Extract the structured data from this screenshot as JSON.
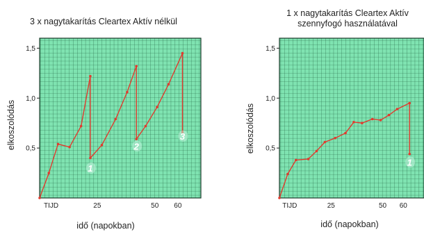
{
  "chart_data": [
    {
      "type": "line",
      "title": "3 x nagytakarítás Cleartex Aktív nélkül",
      "xlabel": "idő (napokban)",
      "ylabel": "elkoszolódás",
      "xlim": [
        0,
        70
      ],
      "ylim": [
        0,
        1.6
      ],
      "x_ticks": [
        {
          "value": 5,
          "label": "TIJD"
        },
        {
          "value": 25,
          "label": "25"
        },
        {
          "value": 50,
          "label": "50"
        },
        {
          "value": 60,
          "label": "60"
        }
      ],
      "y_ticks": [
        {
          "value": 0.5,
          "label": "0,5"
        },
        {
          "value": 1.0,
          "label": "1,0"
        },
        {
          "value": 1.5,
          "label": "1,5"
        }
      ],
      "grid": true,
      "series": [
        {
          "x": [
            0,
            4,
            8,
            13,
            18,
            22,
            22,
            27,
            33,
            38,
            42,
            42,
            46,
            51,
            56,
            62,
            62
          ],
          "y": [
            0.0,
            0.25,
            0.54,
            0.51,
            0.72,
            1.22,
            0.4,
            0.53,
            0.79,
            1.06,
            1.32,
            0.59,
            0.72,
            0.91,
            1.14,
            1.45,
            0.66
          ]
        }
      ],
      "annotations": [
        {
          "label": "1",
          "x": 22,
          "y": 0.3
        },
        {
          "label": "2",
          "x": 42,
          "y": 0.52
        },
        {
          "label": "3",
          "x": 62,
          "y": 0.62
        }
      ]
    },
    {
      "type": "line",
      "title": "1 x nagytakarítás Cleartex Aktív szennyfogó használatával",
      "title_lines": [
        "1 x nagytakarítás Cleartex Aktív",
        "szennyfogó használatával"
      ],
      "xlabel": "idő (napokban)",
      "ylabel": "elkoszolódás",
      "xlim": [
        0,
        70
      ],
      "ylim": [
        0,
        1.6
      ],
      "x_ticks": [
        {
          "value": 5,
          "label": "TIJD"
        },
        {
          "value": 25,
          "label": "25"
        },
        {
          "value": 50,
          "label": "50"
        },
        {
          "value": 60,
          "label": "60"
        }
      ],
      "y_ticks": [
        {
          "value": 0.5,
          "label": "0,5"
        },
        {
          "value": 1.0,
          "label": "1,0"
        },
        {
          "value": 1.5,
          "label": "1,5"
        }
      ],
      "grid": true,
      "series": [
        {
          "x": [
            0,
            4,
            8,
            14,
            18,
            22,
            27,
            32,
            36,
            40,
            45,
            49,
            53,
            57,
            63,
            63
          ],
          "y": [
            0.0,
            0.24,
            0.38,
            0.39,
            0.47,
            0.56,
            0.6,
            0.65,
            0.76,
            0.75,
            0.79,
            0.78,
            0.83,
            0.89,
            0.95,
            0.44
          ]
        }
      ],
      "annotations": [
        {
          "label": "1",
          "x": 63,
          "y": 0.36
        }
      ]
    }
  ]
}
